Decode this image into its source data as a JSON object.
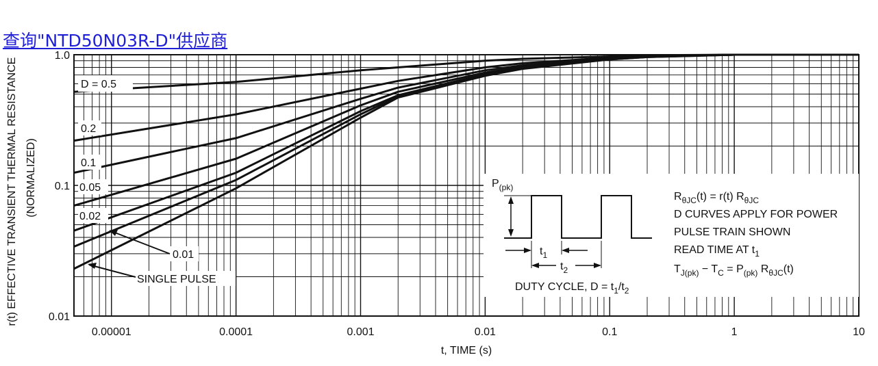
{
  "banner": {
    "text": "查询\"NTD50N03R-D\"供应商"
  },
  "chart_data": {
    "type": "line",
    "title": "",
    "xlabel": "t, TIME (s)",
    "ylabel": "r(t) EFFECTIVE TRANSIENT THERMAL RESISTANCE",
    "ylabel2": "(NORMALIZED)",
    "x_scale": "log",
    "y_scale": "log",
    "xlim": [
      5e-06,
      10
    ],
    "ylim": [
      0.01,
      1.0
    ],
    "grid": true,
    "x_ticks": [
      {
        "value": 1e-05,
        "label": "0.00001"
      },
      {
        "value": 0.0001,
        "label": "0.0001"
      },
      {
        "value": 0.001,
        "label": "0.001"
      },
      {
        "value": 0.01,
        "label": "0.01"
      },
      {
        "value": 0.1,
        "label": "0.1"
      },
      {
        "value": 1,
        "label": "1"
      },
      {
        "value": 10,
        "label": "10"
      }
    ],
    "y_ticks": [
      {
        "value": 0.01,
        "label": "0.01"
      },
      {
        "value": 0.1,
        "label": "0.1"
      },
      {
        "value": 1.0,
        "label": "1.0"
      }
    ],
    "series": [
      {
        "name": "D = 0.5",
        "x": [
          5e-06,
          0.0001,
          0.001,
          0.002,
          0.01,
          0.02,
          0.1,
          0.2,
          1,
          10
        ],
        "y": [
          0.52,
          0.62,
          0.76,
          0.8,
          0.9,
          0.93,
          0.97,
          0.99,
          1.0,
          1.0
        ]
      },
      {
        "name": "0.2",
        "x": [
          5e-06,
          0.0001,
          0.001,
          0.002,
          0.01,
          0.02,
          0.1,
          0.2,
          1,
          10
        ],
        "y": [
          0.22,
          0.35,
          0.55,
          0.63,
          0.8,
          0.86,
          0.95,
          0.98,
          1.0,
          1.0
        ]
      },
      {
        "name": "0.1",
        "x": [
          5e-06,
          0.0001,
          0.001,
          0.002,
          0.01,
          0.02,
          0.1,
          0.2,
          1,
          10
        ],
        "y": [
          0.125,
          0.23,
          0.46,
          0.56,
          0.76,
          0.83,
          0.94,
          0.97,
          1.0,
          1.0
        ]
      },
      {
        "name": "0.05",
        "x": [
          5e-06,
          0.0001,
          0.001,
          0.002,
          0.01,
          0.02,
          0.1,
          0.2,
          1,
          10
        ],
        "y": [
          0.07,
          0.16,
          0.41,
          0.52,
          0.73,
          0.81,
          0.93,
          0.97,
          1.0,
          1.0
        ]
      },
      {
        "name": "0.02",
        "x": [
          5e-06,
          0.0001,
          0.001,
          0.002,
          0.01,
          0.02,
          0.1,
          0.2,
          1,
          10
        ],
        "y": [
          0.045,
          0.125,
          0.37,
          0.49,
          0.71,
          0.8,
          0.93,
          0.97,
          1.0,
          1.0
        ]
      },
      {
        "name": "0.01",
        "x": [
          5e-06,
          0.0001,
          0.001,
          0.002,
          0.01,
          0.02,
          0.1,
          0.2,
          1,
          10
        ],
        "y": [
          0.034,
          0.11,
          0.35,
          0.48,
          0.7,
          0.79,
          0.92,
          0.96,
          1.0,
          1.0
        ]
      },
      {
        "name": "SINGLE PULSE",
        "x": [
          5e-06,
          0.0001,
          0.001,
          0.002,
          0.01,
          0.02,
          0.1,
          0.2,
          1,
          10
        ],
        "y": [
          0.023,
          0.095,
          0.33,
          0.47,
          0.69,
          0.78,
          0.92,
          0.96,
          1.0,
          1.0
        ]
      }
    ],
    "labels": {
      "d05": "D = 0.5",
      "d02": "0.2",
      "d01": "0.1",
      "d005": "0.05",
      "d002": "0.02",
      "d001": "0.01",
      "single": "SINGLE PULSE"
    },
    "inset": {
      "ppk_main": "P",
      "ppk_sub": "(pk)",
      "t1_main": "t",
      "t1_sub": "1",
      "t2_main": "t",
      "t2_sub": "2",
      "duty_main": "DUTY CYCLE, D = t",
      "duty_sub1": "1",
      "duty_slash": "/t",
      "duty_sub2": "2"
    },
    "notes": {
      "l1_a": "R",
      "l1_a_sub": "θJC",
      "l1_b": "(t) = r(t) R",
      "l1_b_sub": "θJC",
      "l2": "D CURVES APPLY FOR POWER",
      "l3": "PULSE TRAIN SHOWN",
      "l4_a": "READ TIME AT t",
      "l4_sub": "1",
      "l5_a": "T",
      "l5_a_sub": "J(pk)",
      "l5_b": " − T",
      "l5_b_sub": "C",
      "l5_c": " = P",
      "l5_c_sub": "(pk)",
      "l5_d": " R",
      "l5_d_sub": "θJC",
      "l5_e": "(t)"
    }
  }
}
